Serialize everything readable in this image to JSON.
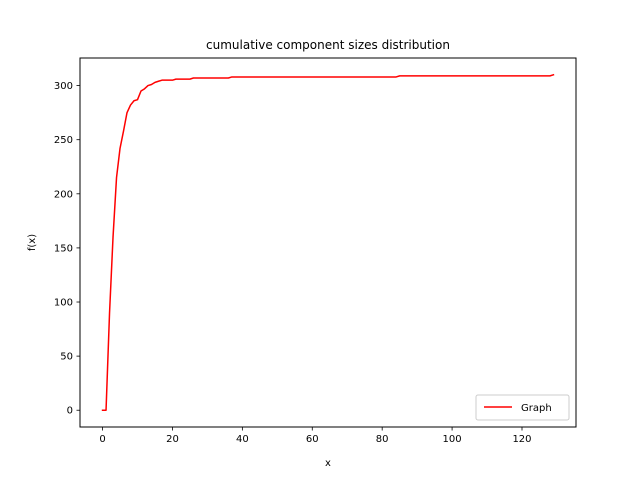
{
  "chart_data": {
    "type": "line",
    "title": "cumulative component sizes distribution",
    "xlabel": "x",
    "ylabel": "f(x)",
    "xlim": [
      -6.45,
      135.45
    ],
    "ylim": [
      -15.5,
      325.5
    ],
    "xticks": [
      0,
      20,
      40,
      60,
      80,
      100,
      120
    ],
    "yticks": [
      0,
      50,
      100,
      150,
      200,
      250,
      300
    ],
    "grid": false,
    "legend_position": "lower-right",
    "series": [
      {
        "name": "Graph",
        "color": "#ff0000",
        "x": [
          0,
          1,
          2,
          3,
          4,
          5,
          6,
          7,
          8,
          9,
          10,
          11,
          12,
          13,
          14,
          15,
          16,
          17,
          18,
          19,
          20,
          21,
          22,
          23,
          24,
          25,
          26,
          27,
          28,
          29,
          30,
          31,
          32,
          33,
          34,
          35,
          36,
          37,
          38,
          40,
          45,
          50,
          55,
          60,
          65,
          70,
          75,
          80,
          84,
          85,
          86,
          90,
          100,
          110,
          120,
          126,
          127,
          128,
          129
        ],
        "y": [
          0,
          0,
          90,
          160,
          215,
          242,
          258,
          275,
          282,
          286,
          287,
          295,
          297,
          300,
          301,
          303,
          304,
          305,
          305,
          305,
          305,
          306,
          306,
          306,
          306,
          306,
          307,
          307,
          307,
          307,
          307,
          307,
          307,
          307,
          307,
          307,
          307,
          308,
          308,
          308,
          308,
          308,
          308,
          308,
          308,
          308,
          308,
          308,
          308,
          309,
          309,
          309,
          309,
          309,
          309,
          309,
          309,
          309,
          310
        ]
      }
    ]
  }
}
